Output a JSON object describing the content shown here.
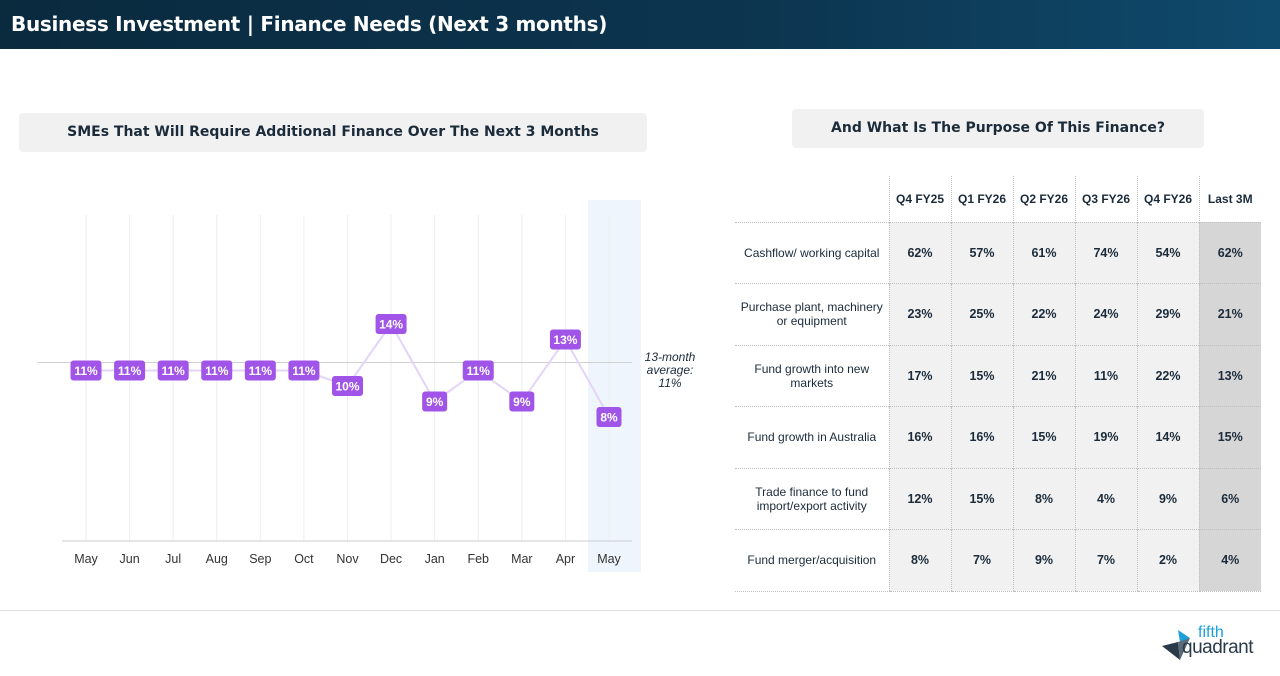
{
  "page_title": "Business Investment | Finance Needs (Next 3 months)",
  "left_heading": "SMEs That Will Require Additional Finance Over The Next 3 Months",
  "right_heading": "And What Is The Purpose Of This Finance?",
  "chart_data": {
    "type": "line",
    "categories": [
      "May",
      "Jun",
      "Jul",
      "Aug",
      "Sep",
      "Oct",
      "Nov",
      "Dec",
      "Jan",
      "Feb",
      "Mar",
      "Apr",
      "May"
    ],
    "values": [
      11,
      11,
      11,
      11,
      11,
      11,
      10,
      14,
      9,
      11,
      9,
      13,
      8
    ],
    "data_labels": [
      "11%",
      "11%",
      "11%",
      "11%",
      "11%",
      "11%",
      "10%",
      "14%",
      "9%",
      "11%",
      "9%",
      "13%",
      "8%"
    ],
    "average_value": 11,
    "average_label": [
      "13-month",
      "average:",
      "11%"
    ],
    "highlighted_category_index": 12,
    "ylim": [
      0,
      22
    ],
    "grid": "vertical",
    "colors": {
      "line": "#e4d4f7",
      "label_bg": "#a055e8",
      "label_text": "#ffffff",
      "highlight": "#eef5fc",
      "grid": "#eeeeee",
      "avg_line": "#d0d0d0"
    }
  },
  "table": {
    "columns": [
      "Q4 FY25",
      "Q1 FY26",
      "Q2 FY26",
      "Q3 FY26",
      "Q4 FY26",
      "Last 3M"
    ],
    "rows": [
      {
        "label": "Cashflow/ working capital",
        "values": [
          "62%",
          "57%",
          "61%",
          "74%",
          "54%",
          "62%"
        ]
      },
      {
        "label": "Purchase plant, machinery or equipment",
        "values": [
          "23%",
          "25%",
          "22%",
          "24%",
          "29%",
          "21%"
        ]
      },
      {
        "label": "Fund growth into new markets",
        "values": [
          "17%",
          "15%",
          "21%",
          "11%",
          "22%",
          "13%"
        ]
      },
      {
        "label": "Fund growth in Australia",
        "values": [
          "16%",
          "16%",
          "15%",
          "19%",
          "14%",
          "15%"
        ]
      },
      {
        "label": "Trade finance to fund import/export activity",
        "values": [
          "12%",
          "15%",
          "8%",
          "4%",
          "9%",
          "6%"
        ]
      },
      {
        "label": "Fund merger/acquisition",
        "values": [
          "8%",
          "7%",
          "9%",
          "7%",
          "2%",
          "4%"
        ]
      }
    ]
  },
  "logo": {
    "line1": "fifth",
    "line2": "quadrant",
    "icon": "fifth-quadrant-logo-icon"
  }
}
